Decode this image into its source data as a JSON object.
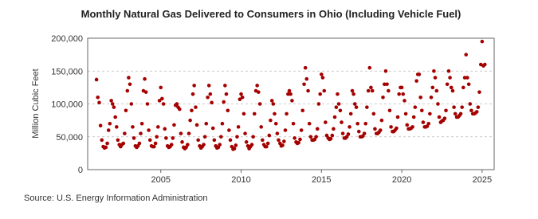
{
  "chart_data": {
    "type": "scatter",
    "title": "Monthly Natural Gas Delivered to Consumers in Ohio (Including Vehicle Fuel)",
    "ylabel": "Million Cubic Feet",
    "source": "Source: U.S. Energy Information Administration",
    "color": "#a50000",
    "grid": true,
    "xlim": [
      2000.45,
      2025.75
    ],
    "xticks": [
      2005,
      2010,
      2015,
      2020,
      2025
    ],
    "ylim": [
      0,
      200000
    ],
    "yticks": [
      0,
      {
        "value": 50000,
        "label": "50,000"
      },
      {
        "value": 100000,
        "label": "100,000"
      },
      {
        "value": 150000,
        "label": "150,000"
      },
      {
        "value": 200000,
        "label": "200,000"
      }
    ],
    "series": [
      {
        "name": "Ohio",
        "color": "#a50000",
        "x": [
          2001.0,
          2001.08,
          2001.17,
          2001.25,
          2001.33,
          2001.42,
          2001.5,
          2001.58,
          2001.67,
          2001.75,
          2001.83,
          2001.92,
          2002.0,
          2002.08,
          2002.17,
          2002.25,
          2002.33,
          2002.42,
          2002.5,
          2002.58,
          2002.67,
          2002.75,
          2002.83,
          2002.92,
          2003.0,
          2003.08,
          2003.17,
          2003.25,
          2003.33,
          2003.42,
          2003.5,
          2003.58,
          2003.67,
          2003.75,
          2003.83,
          2003.92,
          2004.0,
          2004.08,
          2004.17,
          2004.25,
          2004.33,
          2004.42,
          2004.5,
          2004.58,
          2004.67,
          2004.75,
          2004.83,
          2004.92,
          2005.0,
          2005.08,
          2005.17,
          2005.25,
          2005.33,
          2005.42,
          2005.5,
          2005.58,
          2005.67,
          2005.75,
          2005.83,
          2005.92,
          2006.0,
          2006.08,
          2006.17,
          2006.25,
          2006.33,
          2006.42,
          2006.5,
          2006.58,
          2006.67,
          2006.75,
          2006.83,
          2006.92,
          2007.0,
          2007.08,
          2007.17,
          2007.25,
          2007.33,
          2007.42,
          2007.5,
          2007.58,
          2007.67,
          2007.75,
          2007.83,
          2007.92,
          2008.0,
          2008.08,
          2008.17,
          2008.25,
          2008.33,
          2008.42,
          2008.5,
          2008.58,
          2008.67,
          2008.75,
          2008.83,
          2008.92,
          2009.0,
          2009.08,
          2009.17,
          2009.25,
          2009.33,
          2009.42,
          2009.5,
          2009.58,
          2009.67,
          2009.75,
          2009.83,
          2009.92,
          2010.0,
          2010.08,
          2010.17,
          2010.25,
          2010.33,
          2010.42,
          2010.5,
          2010.58,
          2010.67,
          2010.75,
          2010.83,
          2010.92,
          2011.0,
          2011.08,
          2011.17,
          2011.25,
          2011.33,
          2011.42,
          2011.5,
          2011.58,
          2011.67,
          2011.75,
          2011.83,
          2011.92,
          2012.0,
          2012.08,
          2012.17,
          2012.25,
          2012.33,
          2012.42,
          2012.5,
          2012.58,
          2012.67,
          2012.75,
          2012.83,
          2012.92,
          2013.0,
          2013.08,
          2013.17,
          2013.25,
          2013.33,
          2013.42,
          2013.5,
          2013.58,
          2013.67,
          2013.75,
          2013.83,
          2013.92,
          2014.0,
          2014.08,
          2014.17,
          2014.25,
          2014.33,
          2014.42,
          2014.5,
          2014.58,
          2014.67,
          2014.75,
          2014.83,
          2014.92,
          2015.0,
          2015.08,
          2015.17,
          2015.25,
          2015.33,
          2015.42,
          2015.5,
          2015.58,
          2015.67,
          2015.75,
          2015.83,
          2015.92,
          2016.0,
          2016.08,
          2016.17,
          2016.25,
          2016.33,
          2016.42,
          2016.5,
          2016.58,
          2016.67,
          2016.75,
          2016.83,
          2016.92,
          2017.0,
          2017.08,
          2017.17,
          2017.25,
          2017.33,
          2017.42,
          2017.5,
          2017.58,
          2017.67,
          2017.75,
          2017.83,
          2017.92,
          2018.0,
          2018.08,
          2018.17,
          2018.25,
          2018.33,
          2018.42,
          2018.5,
          2018.58,
          2018.67,
          2018.75,
          2018.83,
          2018.92,
          2019.0,
          2019.08,
          2019.17,
          2019.25,
          2019.33,
          2019.42,
          2019.5,
          2019.58,
          2019.67,
          2019.75,
          2019.83,
          2019.92,
          2020.0,
          2020.08,
          2020.17,
          2020.25,
          2020.33,
          2020.42,
          2020.5,
          2020.58,
          2020.67,
          2020.75,
          2020.83,
          2020.92,
          2021.0,
          2021.08,
          2021.17,
          2021.25,
          2021.33,
          2021.42,
          2021.5,
          2021.58,
          2021.67,
          2021.75,
          2021.83,
          2021.92,
          2022.0,
          2022.08,
          2022.17,
          2022.25,
          2022.33,
          2022.42,
          2022.5,
          2022.58,
          2022.67,
          2022.75,
          2022.83,
          2022.92,
          2023.0,
          2023.08,
          2023.17,
          2023.25,
          2023.33,
          2023.42,
          2023.5,
          2023.58,
          2023.67,
          2023.75,
          2023.83,
          2023.92,
          2024.0,
          2024.08,
          2024.17,
          2024.25,
          2024.33,
          2024.42,
          2024.5,
          2024.58,
          2024.67,
          2024.75,
          2024.83,
          2024.92,
          2025.0,
          2025.08,
          2025.17
        ],
        "values": [
          137000,
          110000,
          102000,
          67000,
          45000,
          35000,
          33000,
          34000,
          40000,
          60000,
          70000,
          105000,
          100000,
          95000,
          80000,
          65000,
          45000,
          38000,
          35000,
          38000,
          40000,
          55000,
          90000,
          120000,
          140000,
          130000,
          100000,
          65000,
          48000,
          36000,
          34000,
          36000,
          40000,
          55000,
          70000,
          120000,
          138000,
          118000,
          100000,
          60000,
          45000,
          36000,
          35000,
          35000,
          40000,
          50000,
          65000,
          105000,
          125000,
          108000,
          100000,
          62000,
          48000,
          36000,
          34000,
          35000,
          38000,
          48000,
          68000,
          98000,
          100000,
          95000,
          92000,
          55000,
          42000,
          34000,
          32000,
          34000,
          38000,
          55000,
          75000,
          90000,
          115000,
          128000,
          95000,
          68000,
          45000,
          36000,
          33000,
          35000,
          38000,
          50000,
          70000,
          110000,
          128000,
          115000,
          102000,
          63000,
          45000,
          36000,
          33000,
          34000,
          38000,
          50000,
          70000,
          103000,
          128000,
          115000,
          90000,
          60000,
          45000,
          35000,
          31000,
          32000,
          37000,
          50000,
          65000,
          107000,
          115000,
          110000,
          85000,
          55000,
          42000,
          36000,
          32000,
          35000,
          38000,
          50000,
          85000,
          120000,
          128000,
          118000,
          100000,
          65000,
          45000,
          38000,
          35000,
          35000,
          40000,
          52000,
          75000,
          105000,
          100000,
          85000,
          70000,
          55000,
          45000,
          40000,
          36000,
          37000,
          43000,
          60000,
          85000,
          115000,
          120000,
          115000,
          105000,
          70000,
          48000,
          42000,
          40000,
          41000,
          46000,
          60000,
          90000,
          130000,
          155000,
          138000,
          120000,
          70000,
          50000,
          45000,
          45000,
          46000,
          50000,
          62000,
          100000,
          115000,
          145000,
          140000,
          120000,
          72000,
          52000,
          48000,
          46000,
          47000,
          52000,
          62000,
          80000,
          95000,
          115000,
          100000,
          90000,
          72000,
          55000,
          48000,
          48000,
          50000,
          54000,
          65000,
          85000,
          120000,
          115000,
          100000,
          95000,
          70000,
          58000,
          50000,
          50000,
          51000,
          55000,
          70000,
          95000,
          120000,
          155000,
          125000,
          120000,
          85000,
          62000,
          55000,
          55000,
          57000,
          60000,
          75000,
          110000,
          130000,
          150000,
          130000,
          120000,
          90000,
          65000,
          58000,
          58000,
          60000,
          63000,
          80000,
          115000,
          125000,
          125000,
          115000,
          105000,
          85000,
          68000,
          62000,
          62000,
          63000,
          65000,
          80000,
          95000,
          135000,
          145000,
          145000,
          110000,
          90000,
          72000,
          65000,
          65000,
          66000,
          70000,
          85000,
          110000,
          125000,
          150000,
          140000,
          120000,
          100000,
          80000,
          72000,
          74000,
          75000,
          78000,
          90000,
          130000,
          150000,
          140000,
          125000,
          120000,
          95000,
          85000,
          80000,
          80000,
          82000,
          85000,
          95000,
          125000,
          140000,
          175000,
          140000,
          130000,
          100000,
          90000,
          85000,
          85000,
          86000,
          88000,
          95000,
          118000,
          160000,
          195000,
          158000,
          160000
        ]
      }
    ]
  }
}
